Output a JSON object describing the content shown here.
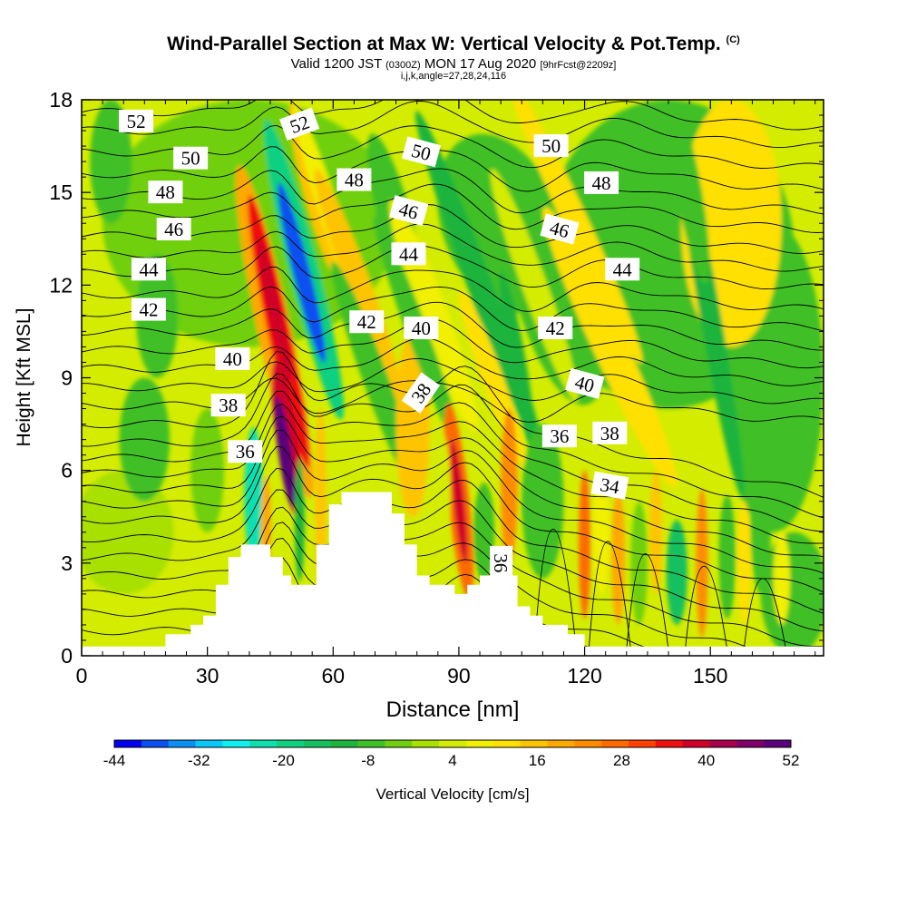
{
  "title": {
    "main": "Wind-Parallel Section at Max W: Vertical Velocity & Pot.Temp.",
    "copyright": "(C)",
    "valid_prefix": "Valid 1200 JST",
    "valid_utc": "(0300Z)",
    "valid_date": "MON 17 Aug 2020",
    "forecast": "[9hrFcst@2209z]",
    "meta": "i,j,k,angle=27,28,24,116"
  },
  "chart_data": {
    "type": "heatmap",
    "xlabel": "Distance [nm]",
    "ylabel": "Height [Kft MSL]",
    "xlim": [
      0,
      177
    ],
    "ylim": [
      0,
      18
    ],
    "xticks": [
      0,
      30,
      60,
      90,
      120,
      150
    ],
    "yticks": [
      0,
      3,
      6,
      9,
      12,
      15,
      18
    ],
    "xtick_labels": [
      "0",
      "30",
      "60",
      "90",
      "120",
      "150"
    ],
    "ytick_labels": [
      "0",
      "3",
      "6",
      "9",
      "12",
      "15",
      "18"
    ],
    "colorbar": {
      "label": "Vertical Velocity [cm/s]",
      "tick_labels": [
        "-44",
        "-32",
        "-20",
        "-8",
        "4",
        "16",
        "28",
        "40",
        "52"
      ],
      "levels": [
        -44,
        -40,
        -36,
        -32,
        -28,
        -24,
        -20,
        -16,
        -12,
        -8,
        -4,
        0,
        4,
        8,
        12,
        16,
        20,
        24,
        28,
        32,
        36,
        40,
        44,
        48,
        52
      ],
      "colors": [
        "#0000ee",
        "#0a50f0",
        "#0a90f5",
        "#0ac8f8",
        "#10f0f0",
        "#10e0b0",
        "#10d080",
        "#12c060",
        "#1cb43c",
        "#40c028",
        "#70d010",
        "#a8e000",
        "#d4ec00",
        "#f0f000",
        "#ffe000",
        "#ffc400",
        "#ffa800",
        "#ff8c00",
        "#ff6a00",
        "#ff4000",
        "#f01010",
        "#d00028",
        "#a8004a",
        "#80006a",
        "#5a007c"
      ]
    },
    "updrafts": [
      {
        "x": 48,
        "y": 6.8,
        "peak_cm_s": 52
      },
      {
        "x": 45,
        "y": 11.0,
        "peak_cm_s": 40
      },
      {
        "x": 90,
        "y": 5.0,
        "peak_cm_s": 40
      },
      {
        "x": 79,
        "y": 8.0,
        "peak_cm_s": 16
      },
      {
        "x": 102,
        "y": 5.5,
        "peak_cm_s": 24
      },
      {
        "x": 120,
        "y": 3.5,
        "peak_cm_s": 28
      },
      {
        "x": 148,
        "y": 3.0,
        "peak_cm_s": 24
      }
    ],
    "downdrafts": [
      {
        "x": 52,
        "y": 12.5,
        "min_cm_s": -44
      },
      {
        "x": 41,
        "y": 5.0,
        "min_cm_s": -24
      },
      {
        "x": 142,
        "y": 2.8,
        "min_cm_s": -12
      },
      {
        "x": 104,
        "y": 10.0,
        "min_cm_s": -12
      }
    ],
    "terrain": [
      [
        0,
        0.3
      ],
      [
        20,
        0.3
      ],
      [
        20,
        0.7
      ],
      [
        26,
        0.7
      ],
      [
        26,
        1.0
      ],
      [
        29,
        1.0
      ],
      [
        29,
        1.3
      ],
      [
        32,
        1.3
      ],
      [
        32,
        2.3
      ],
      [
        35,
        2.3
      ],
      [
        35,
        3.2
      ],
      [
        38,
        3.2
      ],
      [
        38,
        3.6
      ],
      [
        45,
        3.6
      ],
      [
        45,
        3.2
      ],
      [
        48,
        3.2
      ],
      [
        48,
        2.6
      ],
      [
        50,
        2.6
      ],
      [
        50,
        2.3
      ],
      [
        56,
        2.3
      ],
      [
        56,
        3.6
      ],
      [
        59,
        3.6
      ],
      [
        59,
        4.9
      ],
      [
        62,
        4.9
      ],
      [
        62,
        5.3
      ],
      [
        74,
        5.3
      ],
      [
        74,
        4.6
      ],
      [
        77,
        4.6
      ],
      [
        77,
        3.6
      ],
      [
        80,
        3.6
      ],
      [
        80,
        2.6
      ],
      [
        83,
        2.6
      ],
      [
        83,
        2.3
      ],
      [
        89,
        2.3
      ],
      [
        89,
        2.0
      ],
      [
        92,
        2.0
      ],
      [
        92,
        2.3
      ],
      [
        95,
        2.3
      ],
      [
        95,
        2.6
      ],
      [
        104,
        2.6
      ],
      [
        104,
        1.6
      ],
      [
        107,
        1.6
      ],
      [
        107,
        1.3
      ],
      [
        110,
        1.3
      ],
      [
        110,
        1.0
      ],
      [
        116,
        1.0
      ],
      [
        116,
        0.7
      ],
      [
        120,
        0.7
      ],
      [
        120,
        0.3
      ],
      [
        177,
        0.3
      ]
    ],
    "theta_contour_labels": [
      {
        "text": "52",
        "x": 13,
        "y": 17.3,
        "angle": 0
      },
      {
        "text": "52",
        "x": 52,
        "y": 17.2,
        "angle": -20
      },
      {
        "text": "50",
        "x": 26,
        "y": 16.1,
        "angle": 0
      },
      {
        "text": "50",
        "x": 81,
        "y": 16.3,
        "angle": 15
      },
      {
        "text": "50",
        "x": 112,
        "y": 16.5,
        "angle": 0
      },
      {
        "text": "48",
        "x": 20,
        "y": 15.0,
        "angle": 0
      },
      {
        "text": "48",
        "x": 65,
        "y": 15.4,
        "angle": 0
      },
      {
        "text": "48",
        "x": 124,
        "y": 15.3,
        "angle": 0
      },
      {
        "text": "46",
        "x": 22,
        "y": 13.8,
        "angle": 0
      },
      {
        "text": "46",
        "x": 78,
        "y": 14.4,
        "angle": 15
      },
      {
        "text": "46",
        "x": 114,
        "y": 13.8,
        "angle": 15
      },
      {
        "text": "44",
        "x": 16,
        "y": 12.5,
        "angle": 0
      },
      {
        "text": "44",
        "x": 78,
        "y": 13.0,
        "angle": 0
      },
      {
        "text": "44",
        "x": 129,
        "y": 12.5,
        "angle": 0
      },
      {
        "text": "42",
        "x": 16,
        "y": 11.2,
        "angle": 0
      },
      {
        "text": "42",
        "x": 68,
        "y": 10.8,
        "angle": 0
      },
      {
        "text": "42",
        "x": 113,
        "y": 10.6,
        "angle": 0
      },
      {
        "text": "40",
        "x": 36,
        "y": 9.6,
        "angle": 0
      },
      {
        "text": "40",
        "x": 81,
        "y": 10.6,
        "angle": 0
      },
      {
        "text": "40",
        "x": 120,
        "y": 8.8,
        "angle": 15
      },
      {
        "text": "38",
        "x": 35,
        "y": 8.1,
        "angle": 0
      },
      {
        "text": "38",
        "x": 81,
        "y": 8.5,
        "angle": -55
      },
      {
        "text": "38",
        "x": 126,
        "y": 7.2,
        "angle": 0
      },
      {
        "text": "36",
        "x": 39,
        "y": 6.6,
        "angle": 0
      },
      {
        "text": "36",
        "x": 114,
        "y": 7.1,
        "angle": 0
      },
      {
        "text": "36",
        "x": 100,
        "y": 3.0,
        "angle": 90
      },
      {
        "text": "34",
        "x": 126,
        "y": 5.5,
        "angle": 10
      }
    ]
  }
}
